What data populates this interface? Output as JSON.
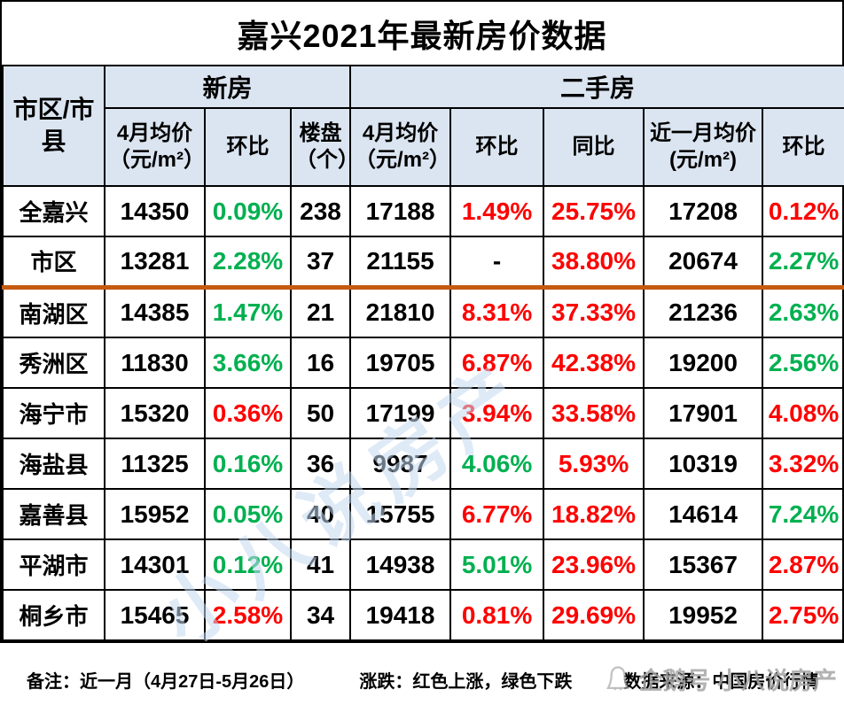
{
  "title": "嘉兴2021年最新房价数据",
  "table": {
    "corner_header": "市区/市县",
    "group_headers": [
      {
        "label": "新房",
        "span": 3
      },
      {
        "label": "二手房",
        "span": 5
      }
    ],
    "sub_headers": [
      "4月均价（元/m²）",
      "环比",
      "楼盘（个）",
      "4月均价（元/m²）",
      "环比",
      "同比",
      "近一月均价(元/m²)",
      "环比"
    ],
    "rows": [
      {
        "name": "全嘉兴",
        "divider": false,
        "cells": [
          {
            "v": "14350",
            "c": "black"
          },
          {
            "v": "0.09%",
            "c": "green"
          },
          {
            "v": "238",
            "c": "black"
          },
          {
            "v": "17188",
            "c": "black"
          },
          {
            "v": "1.49%",
            "c": "red"
          },
          {
            "v": "25.75%",
            "c": "red"
          },
          {
            "v": "17208",
            "c": "black"
          },
          {
            "v": "0.12%",
            "c": "red"
          }
        ]
      },
      {
        "name": "市区",
        "divider": true,
        "cells": [
          {
            "v": "13281",
            "c": "black"
          },
          {
            "v": "2.28%",
            "c": "green"
          },
          {
            "v": "37",
            "c": "black"
          },
          {
            "v": "21155",
            "c": "black"
          },
          {
            "v": "-",
            "c": "black"
          },
          {
            "v": "38.80%",
            "c": "red"
          },
          {
            "v": "20674",
            "c": "black"
          },
          {
            "v": "2.27%",
            "c": "green"
          }
        ]
      },
      {
        "name": "南湖区",
        "divider": false,
        "cells": [
          {
            "v": "14385",
            "c": "black"
          },
          {
            "v": "1.47%",
            "c": "green"
          },
          {
            "v": "21",
            "c": "black"
          },
          {
            "v": "21810",
            "c": "black"
          },
          {
            "v": "8.31%",
            "c": "red"
          },
          {
            "v": "37.33%",
            "c": "red"
          },
          {
            "v": "21236",
            "c": "black"
          },
          {
            "v": "2.63%",
            "c": "green"
          }
        ]
      },
      {
        "name": "秀洲区",
        "divider": false,
        "cells": [
          {
            "v": "11830",
            "c": "black"
          },
          {
            "v": "3.66%",
            "c": "green"
          },
          {
            "v": "16",
            "c": "black"
          },
          {
            "v": "19705",
            "c": "black"
          },
          {
            "v": "6.87%",
            "c": "red"
          },
          {
            "v": "42.38%",
            "c": "red"
          },
          {
            "v": "19200",
            "c": "black"
          },
          {
            "v": "2.56%",
            "c": "green"
          }
        ]
      },
      {
        "name": "海宁市",
        "divider": false,
        "cells": [
          {
            "v": "15320",
            "c": "black"
          },
          {
            "v": "0.36%",
            "c": "red"
          },
          {
            "v": "50",
            "c": "black"
          },
          {
            "v": "17199",
            "c": "black"
          },
          {
            "v": "3.94%",
            "c": "red"
          },
          {
            "v": "33.58%",
            "c": "red"
          },
          {
            "v": "17901",
            "c": "black"
          },
          {
            "v": "4.08%",
            "c": "red"
          }
        ]
      },
      {
        "name": "海盐县",
        "divider": false,
        "cells": [
          {
            "v": "11325",
            "c": "black"
          },
          {
            "v": "0.16%",
            "c": "green"
          },
          {
            "v": "36",
            "c": "black"
          },
          {
            "v": "9987",
            "c": "black"
          },
          {
            "v": "4.06%",
            "c": "green"
          },
          {
            "v": "5.93%",
            "c": "red"
          },
          {
            "v": "10319",
            "c": "black"
          },
          {
            "v": "3.32%",
            "c": "red"
          }
        ]
      },
      {
        "name": "嘉善县",
        "divider": false,
        "cells": [
          {
            "v": "15952",
            "c": "black"
          },
          {
            "v": "0.05%",
            "c": "green"
          },
          {
            "v": "40",
            "c": "black"
          },
          {
            "v": "15755",
            "c": "black"
          },
          {
            "v": "6.77%",
            "c": "red"
          },
          {
            "v": "18.82%",
            "c": "red"
          },
          {
            "v": "14614",
            "c": "black"
          },
          {
            "v": "7.24%",
            "c": "green"
          }
        ]
      },
      {
        "name": "平湖市",
        "divider": false,
        "cells": [
          {
            "v": "14301",
            "c": "black"
          },
          {
            "v": "0.12%",
            "c": "green"
          },
          {
            "v": "41",
            "c": "black"
          },
          {
            "v": "14938",
            "c": "black"
          },
          {
            "v": "5.01%",
            "c": "green"
          },
          {
            "v": "23.96%",
            "c": "red"
          },
          {
            "v": "15367",
            "c": "black"
          },
          {
            "v": "2.87%",
            "c": "red"
          }
        ]
      },
      {
        "name": "桐乡市",
        "divider": false,
        "cells": [
          {
            "v": "15465",
            "c": "black"
          },
          {
            "v": "2.58%",
            "c": "red"
          },
          {
            "v": "34",
            "c": "black"
          },
          {
            "v": "19418",
            "c": "black"
          },
          {
            "v": "0.81%",
            "c": "red"
          },
          {
            "v": "29.69%",
            "c": "red"
          },
          {
            "v": "19952",
            "c": "black"
          },
          {
            "v": "2.75%",
            "c": "red"
          }
        ]
      }
    ]
  },
  "footer": {
    "note": "备注：近一月（4月27日-5月26日）",
    "legend": "涨跌：红色上涨，绿色下跌",
    "source": "数据来源：中国房价行情",
    "watermark": "企鹅号 小八说房产"
  },
  "watermark_diagonal": "小八说房产",
  "colors": {
    "up_red": "#ff0000",
    "down_green": "#00b050",
    "header_bg": "#dbe5f1",
    "divider_orange": "#c55a11",
    "watermark_blue": "#b8cce4",
    "border_black": "#000000"
  }
}
